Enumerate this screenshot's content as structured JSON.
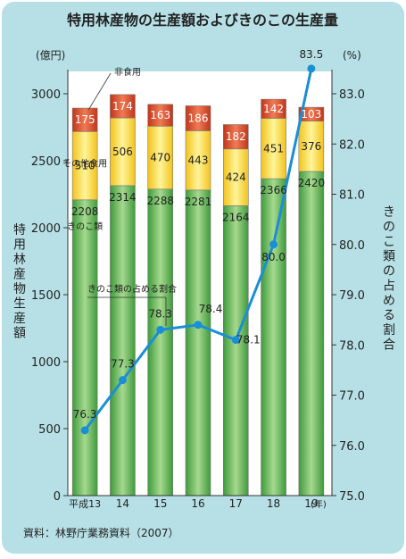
{
  "chart_data": {
    "type": "bar",
    "title": "特用林産物の生産額およびきのこの生産量",
    "y_left_unit": "(億円)",
    "y_right_unit": "(%)",
    "y_left_label": "特用林産物生産額",
    "y_right_label": "きのこ類の占める割合",
    "x_unit": "(年)",
    "categories": [
      "平成13",
      "14",
      "15",
      "16",
      "17",
      "18",
      "19"
    ],
    "y_left_ticks": [
      "0",
      "500",
      "1000",
      "1500",
      "2000",
      "2500",
      "3000"
    ],
    "y_left_range": [
      0,
      3000
    ],
    "y_right_ticks": [
      "75.0",
      "76.0",
      "77.0",
      "78.0",
      "79.0",
      "80.0",
      "81.0",
      "82.0",
      "83.0"
    ],
    "y_right_range": [
      75.0,
      83.0
    ],
    "stack_series": [
      {
        "name": "きのこ類",
        "color": "#4caf50",
        "values": [
          2208,
          2314,
          2288,
          2281,
          2164,
          2366,
          2420
        ]
      },
      {
        "name": "その他食用",
        "color": "#ffe34d",
        "values": [
          510,
          506,
          470,
          443,
          424,
          451,
          376
        ]
      },
      {
        "name": "非食用",
        "color": "#d23a1e",
        "values": [
          175,
          174,
          163,
          186,
          182,
          142,
          103
        ]
      }
    ],
    "line_series": {
      "name": "きのこ類の占める割合",
      "color": "#1a8fd6",
      "values": [
        76.3,
        77.3,
        78.3,
        78.4,
        78.1,
        80.0,
        83.5
      ],
      "labels": [
        "76.3",
        "77.3",
        "78.3",
        "78.4",
        "78.1",
        "80.0",
        "83.5"
      ]
    },
    "grid": false,
    "legend": "inline annotations"
  },
  "source": "資料：林野庁業務資料（2007）",
  "colors": {
    "background": "#b6e0e6",
    "plot_background": "#ffffff",
    "title_color": "#222222"
  }
}
